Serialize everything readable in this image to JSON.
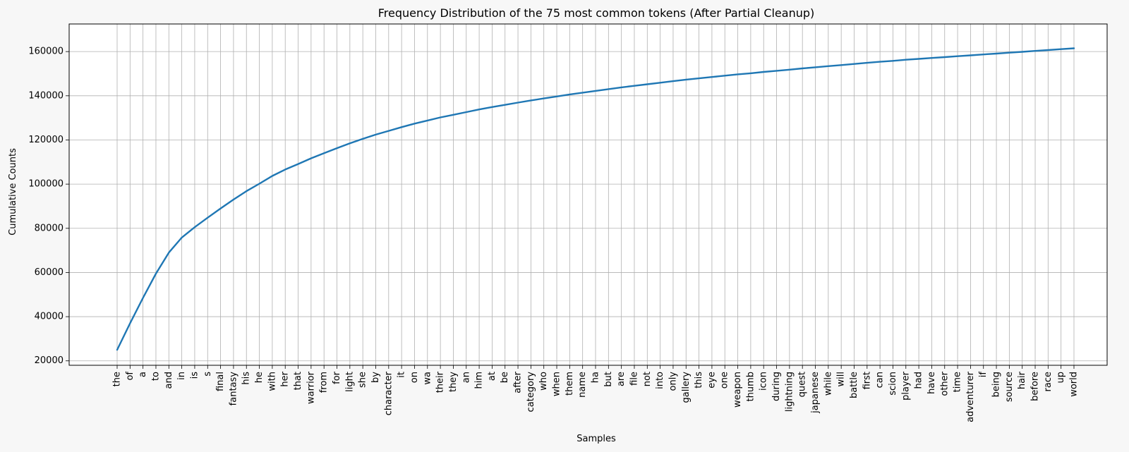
{
  "chart_data": {
    "type": "line",
    "title": "Frequency  Distribution of the 75 most common tokens (After Partial Cleanup)",
    "xlabel": "Samples",
    "ylabel": "Cumulative Counts",
    "ylim": [
      18000,
      172500
    ],
    "yticks": [
      20000,
      40000,
      60000,
      80000,
      100000,
      120000,
      140000,
      160000
    ],
    "ytick_labels": [
      "20000",
      "40000",
      "60000",
      "80000",
      "100000",
      "120000",
      "140000",
      "160000"
    ],
    "grid": true,
    "line_color": "#1f77b4",
    "categories": [
      "the",
      "of",
      "a",
      "to",
      "and",
      "in",
      "is",
      "s",
      "final",
      "fantasy",
      "his",
      "he",
      "with",
      "her",
      "that",
      "warrior",
      "from",
      "for",
      "light",
      "she",
      "by",
      "character",
      "it",
      "on",
      "wa",
      "their",
      "they",
      "an",
      "him",
      "at",
      "be",
      "after",
      "category",
      "who",
      "when",
      "them",
      "name",
      "ha",
      "but",
      "are",
      "file",
      "not",
      "into",
      "only",
      "gallery",
      "this",
      "eye",
      "one",
      "weapon",
      "thumb",
      "icon",
      "during",
      "lightning",
      "quest",
      "japanese",
      "while",
      "will",
      "battle",
      "first",
      "can",
      "scion",
      "player",
      "had",
      "have",
      "other",
      "time",
      "adventurer",
      "if",
      "being",
      "source",
      "hair",
      "before",
      "race",
      "up",
      "world"
    ],
    "series": [
      {
        "values": [
          25000,
          37000,
          48500,
          59500,
          69000,
          75800,
          80500,
          84800,
          89000,
          93000,
          96800,
          100200,
          103700,
          106600,
          109100,
          111700,
          114000,
          116300,
          118500,
          120500,
          122400,
          124100,
          125800,
          127400,
          128800,
          130200,
          131400,
          132600,
          133800,
          134900,
          135900,
          136900,
          137900,
          138800,
          139700,
          140600,
          141400,
          142200,
          143000,
          143800,
          144500,
          145200,
          145900,
          146600,
          147300,
          147900,
          148500,
          149100,
          149700,
          150200,
          150800,
          151300,
          151800,
          152400,
          152900,
          153400,
          153900,
          154400,
          154900,
          155400,
          155800,
          156300,
          156700,
          157100,
          157500,
          157900,
          158300,
          158700,
          159100,
          159500,
          159900,
          160300,
          160700,
          161100,
          161500
        ]
      }
    ]
  }
}
